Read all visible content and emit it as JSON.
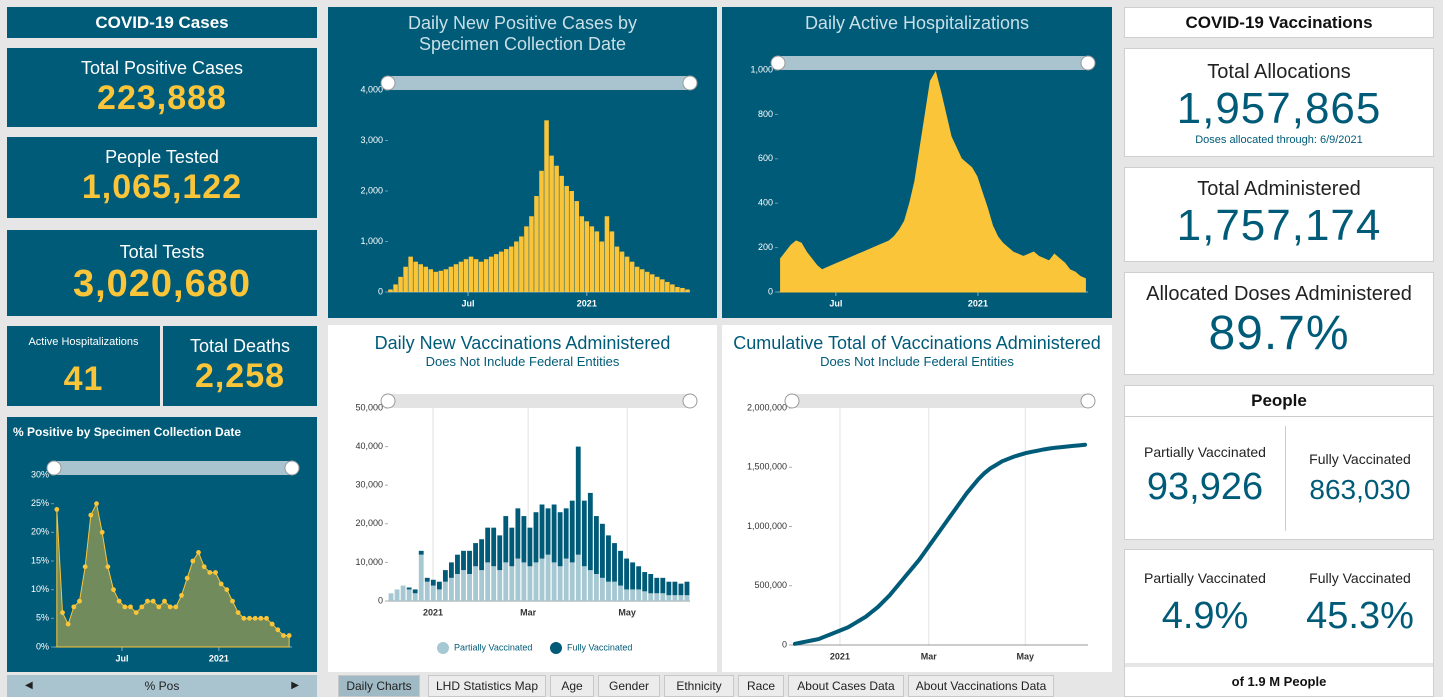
{
  "cases": {
    "header": "COVID-19 Cases",
    "kpis": [
      {
        "label": "Total Positive Cases",
        "value": "223,888"
      },
      {
        "label": "People Tested",
        "value": "1,065,122"
      },
      {
        "label": "Total Tests",
        "value": "3,020,680"
      },
      {
        "label": "Active Hospitalizations",
        "value": "41"
      },
      {
        "label": "Total Deaths",
        "value": "2,258"
      }
    ],
    "footer": "% Pos"
  },
  "charts": {
    "positive_rate": {
      "type": "area",
      "title": "% Positive by Specimen Collection Date",
      "color": "#fbc53a",
      "markers": true,
      "grid": "none",
      "values": [
        24,
        6,
        4,
        7,
        8,
        14,
        23,
        25,
        20,
        14,
        10,
        8,
        7,
        7,
        6,
        7,
        8,
        8,
        7,
        8,
        7,
        7,
        9,
        12,
        15,
        16.5,
        14,
        13,
        13,
        11,
        10,
        8,
        6,
        5,
        5,
        5,
        5,
        5,
        4,
        3,
        2,
        2
      ],
      "ylim": [
        0,
        30
      ],
      "yticks": [
        {
          "value": 0,
          "label": "0%"
        },
        {
          "value": 5,
          "label": "5%"
        },
        {
          "value": 10,
          "label": "10%"
        },
        {
          "value": 15,
          "label": "15%"
        },
        {
          "value": 20,
          "label": "20%"
        },
        {
          "value": 25,
          "label": "25%"
        },
        {
          "value": 30,
          "label": "30%"
        }
      ],
      "xticks": [
        {
          "value": 11.5,
          "label": "Jul"
        },
        {
          "value": 28.6,
          "label": "2021"
        }
      ]
    },
    "daily_cases": {
      "type": "bar",
      "title": "Daily New Positive Cases by Specimen Collection Date",
      "color": "#fbc53a",
      "grid": "none",
      "values": [
        50,
        150,
        300,
        500,
        700,
        600,
        550,
        500,
        450,
        400,
        420,
        450,
        500,
        550,
        600,
        650,
        700,
        650,
        600,
        650,
        700,
        750,
        800,
        850,
        900,
        1000,
        1100,
        1300,
        1500,
        1900,
        2400,
        3400,
        2700,
        2500,
        2300,
        2100,
        2000,
        1800,
        1500,
        1400,
        1300,
        1200,
        1000,
        1500,
        1200,
        900,
        800,
        700,
        600,
        500,
        450,
        400,
        350,
        300,
        250,
        200,
        150,
        100,
        80,
        50
      ],
      "ylim": [
        0,
        4000
      ],
      "yticks": [
        0,
        {
          "value": 1000,
          "label": "1,000"
        },
        {
          "value": 2000,
          "label": "2,000"
        },
        {
          "value": 3000,
          "label": "3,000"
        },
        {
          "value": 4000,
          "label": "4,000"
        }
      ],
      "xticks": [
        {
          "value": 15.4,
          "label": "Jul"
        },
        {
          "value": 39.0,
          "label": "2021"
        }
      ]
    },
    "hospitalizations": {
      "type": "area",
      "title": "Daily Active Hospitalizations",
      "color": "#fbc53a",
      "markers": false,
      "grid": "none",
      "values": [
        150,
        180,
        210,
        230,
        220,
        180,
        150,
        120,
        100,
        110,
        120,
        130,
        140,
        150,
        160,
        170,
        180,
        190,
        200,
        210,
        220,
        230,
        250,
        280,
        320,
        400,
        500,
        650,
        800,
        950,
        990,
        900,
        800,
        700,
        650,
        600,
        580,
        560,
        520,
        450,
        380,
        300,
        250,
        220,
        200,
        180,
        170,
        160,
        170,
        180,
        160,
        150,
        140,
        170,
        150,
        130,
        100,
        90,
        70,
        60
      ],
      "ylim": [
        0,
        1000
      ],
      "yticks": [
        0,
        200,
        400,
        600,
        800,
        {
          "value": 1000,
          "label": "1,000"
        }
      ],
      "xticks": [
        {
          "value": 10.7,
          "label": "Jul"
        },
        {
          "value": 38.2,
          "label": "2021"
        }
      ]
    },
    "daily_vaccinations": {
      "type": "stacked_bar",
      "title": "Daily New Vaccinations Administered",
      "subtitle": "Does Not Include Federal Entities",
      "grid": "x",
      "series": [
        {
          "name": "Partially Vaccinated",
          "color": "#a6c8d2",
          "values": [
            2000,
            3000,
            4000,
            3000,
            2000,
            12000,
            5000,
            4000,
            3000,
            5000,
            6000,
            7000,
            8000,
            7000,
            9000,
            8000,
            10000,
            9000,
            8000,
            10000,
            9000,
            11000,
            10000,
            9000,
            10000,
            11000,
            12000,
            10000,
            9000,
            11000,
            10000,
            12000,
            9000,
            8000,
            7000,
            6000,
            5000,
            5000,
            4000,
            3000,
            3000,
            3000,
            2500,
            2000,
            2000,
            2000,
            1500,
            1500,
            1500,
            1500
          ]
        },
        {
          "name": "Fully Vaccinated",
          "color": "#005b78",
          "values": [
            0,
            0,
            0,
            500,
            1000,
            1000,
            1000,
            1500,
            2000,
            3000,
            4000,
            5000,
            5000,
            6000,
            6000,
            8000,
            9000,
            10000,
            9000,
            12000,
            10000,
            13000,
            12000,
            10000,
            13000,
            14000,
            12000,
            15000,
            14000,
            13000,
            16000,
            28000,
            17000,
            20000,
            15000,
            14000,
            12000,
            10000,
            9000,
            8000,
            7000,
            6000,
            5000,
            5000,
            4000,
            4000,
            3500,
            3500,
            3000,
            3500
          ]
        }
      ],
      "ylim": [
        0,
        50000
      ],
      "yticks": [
        0,
        {
          "value": 10000,
          "label": "10,000"
        },
        {
          "value": 20000,
          "label": "20,000"
        },
        {
          "value": 30000,
          "label": "30,000"
        },
        {
          "value": 40000,
          "label": "40,000"
        },
        {
          "value": 50000,
          "label": "50,000"
        }
      ],
      "xticks": [
        {
          "value": 6.95,
          "label": "2021"
        },
        {
          "value": 22.7,
          "label": "Mar"
        },
        {
          "value": 39.1,
          "label": "May"
        }
      ]
    },
    "cumulative_vaccinations": {
      "type": "line",
      "title": "Cumulative Total of Vaccinations Administered",
      "subtitle": "Does Not Include Federal Entities",
      "color": "#005b78",
      "grid": "x",
      "values": [
        10000,
        20000,
        30000,
        40000,
        50000,
        70000,
        90000,
        110000,
        130000,
        150000,
        180000,
        210000,
        240000,
        280000,
        320000,
        370000,
        420000,
        480000,
        540000,
        600000,
        660000,
        720000,
        790000,
        860000,
        930000,
        1000000,
        1070000,
        1140000,
        1210000,
        1280000,
        1340000,
        1400000,
        1450000,
        1490000,
        1520000,
        1550000,
        1570000,
        1590000,
        1605000,
        1620000,
        1630000,
        1640000,
        1650000,
        1658000,
        1665000,
        1670000,
        1675000,
        1680000,
        1685000,
        1690000
      ],
      "ylim": [
        0,
        2000000
      ],
      "yticks": [
        0,
        {
          "value": 500000,
          "label": "500,000"
        },
        {
          "value": 1000000,
          "label": "1,000,000"
        },
        {
          "value": 1500000,
          "label": "1,500,000"
        },
        {
          "value": 2000000,
          "label": "2,000,000"
        }
      ],
      "xticks": [
        {
          "value": 7.6,
          "label": "2021"
        },
        {
          "value": 22.6,
          "label": "Mar"
        },
        {
          "value": 38.9,
          "label": "May"
        }
      ]
    }
  },
  "tabs": [
    "Daily Charts",
    "LHD Statistics Map",
    "Age",
    "Gender",
    "Ethnicity",
    "Race",
    "About Cases Data",
    "About Vaccinations Data"
  ],
  "vaccinations": {
    "header": "COVID-19 Vaccinations",
    "allocations": {
      "label": "Total Allocations",
      "value": "1,957,865",
      "note": "Doses allocated through: 6/9/2021"
    },
    "administered": {
      "label": "Total Administered",
      "value": "1,757,174"
    },
    "allocated_administered": {
      "label": "Allocated Doses Administered",
      "value": "89.7%"
    },
    "people": {
      "header": "People",
      "partial_label": "Partially Vaccinated",
      "partial_value": "93,926",
      "full_label": "Fully Vaccinated",
      "full_value": "863,030"
    },
    "percent": {
      "partial_label": "Partially Vaccinated",
      "partial_value": "4.9%",
      "full_label": "Fully Vaccinated",
      "full_value": "45.3%",
      "footer": "of 1.9 M People"
    }
  }
}
